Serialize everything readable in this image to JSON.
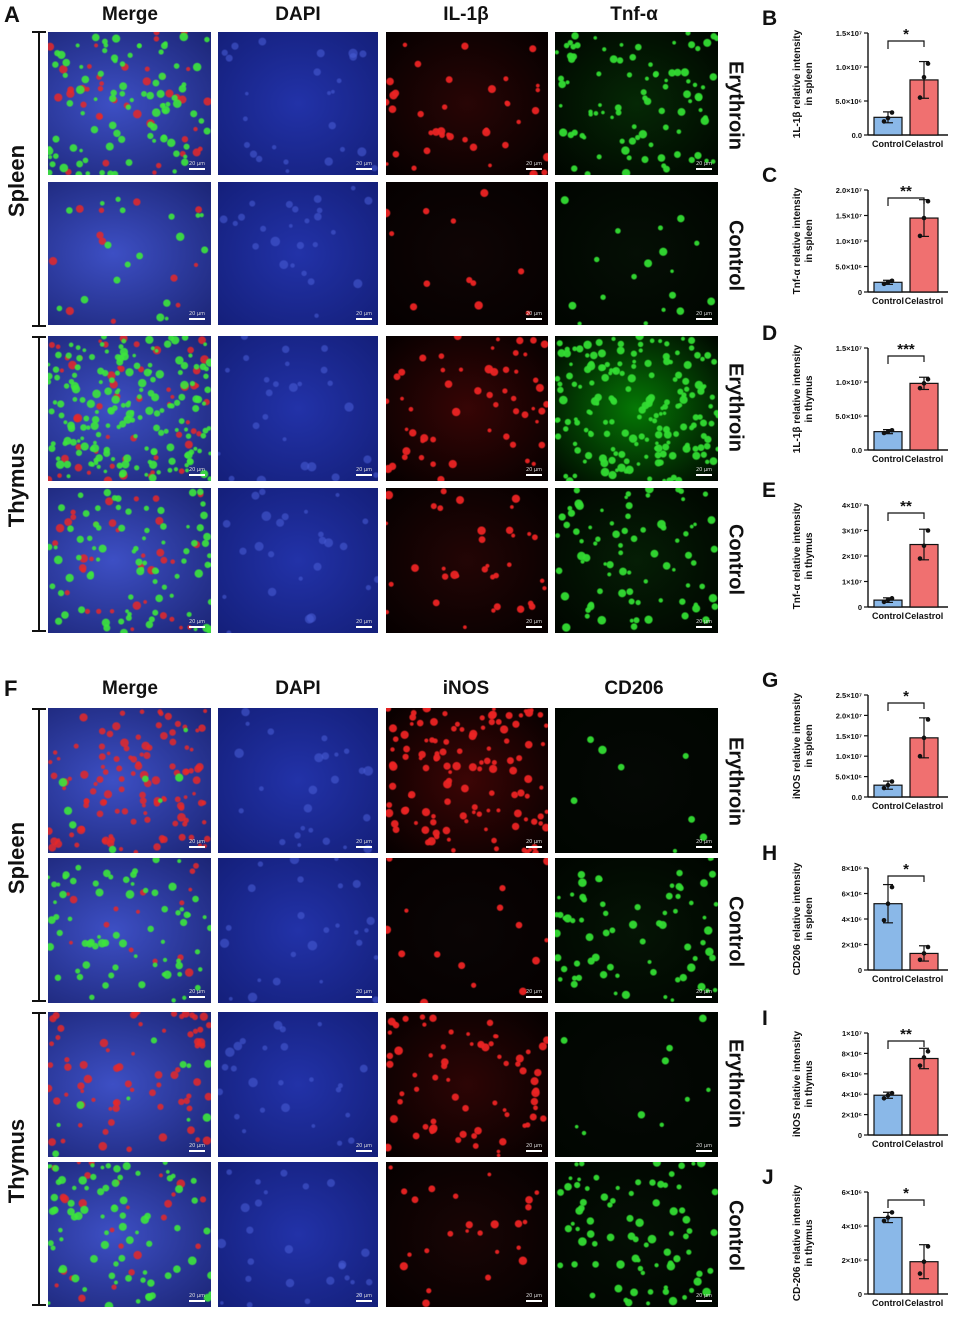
{
  "figure": {
    "panel_A": {
      "letter": "A",
      "columns": [
        "Merge",
        "DAPI",
        "IL-1β",
        "Tnf-α"
      ],
      "tissues": [
        "Spleen",
        "Thymus"
      ],
      "rows": [
        "Erythroin",
        "Control",
        "Erythroin",
        "Control"
      ]
    },
    "panel_F": {
      "letter": "F",
      "columns": [
        "Merge",
        "DAPI",
        "iNOS",
        "CD206"
      ],
      "tissues": [
        "Spleen",
        "Thymus"
      ],
      "rows": [
        "Erythroin",
        "Control",
        "Erythroin",
        "Control"
      ]
    },
    "scale_bar_label": "20 μm",
    "colors": {
      "dapi": "#1b2ea0",
      "red": "#d81818",
      "green": "#22c422",
      "control_bar": "#8ab8e8",
      "celastrol_bar": "#f07070"
    }
  },
  "chart_data": [
    {
      "letter": "B",
      "type": "bar",
      "ylabel": "1L-1β relative intensity in spleen",
      "categories": [
        "Control",
        "Celastrol"
      ],
      "values": [
        2600000.0,
        8100000.0
      ],
      "errors": [
        800000.0,
        2700000.0
      ],
      "points": [
        [
          2000000.0,
          2500000.0,
          3300000.0
        ],
        [
          5500000.0,
          8500000.0,
          10500000.0
        ]
      ],
      "ylim": [
        0,
        15000000.0
      ],
      "ticks": [
        0,
        5000000.0,
        10000000.0,
        15000000.0
      ],
      "tick_labels": [
        "0.0",
        "5.0×10⁶",
        "1.0×10⁷",
        "1.5×10⁷"
      ],
      "significance": "*"
    },
    {
      "letter": "C",
      "type": "bar",
      "ylabel": "Tnf-α relative intensity in spleen",
      "categories": [
        "Control",
        "Celastrol"
      ],
      "values": [
        1900000.0,
        14500000.0
      ],
      "errors": [
        400000.0,
        3600000.0
      ],
      "points": [
        [
          1600000.0,
          1900000.0,
          2200000.0
        ],
        [
          11000000.0,
          14500000.0,
          17800000.0
        ]
      ],
      "ylim": [
        0,
        20000000.0
      ],
      "ticks": [
        0,
        5000000.0,
        10000000.0,
        15000000.0,
        20000000.0
      ],
      "tick_labels": [
        "0",
        "5.0×10⁶",
        "1.0×10⁷",
        "1.5×10⁷",
        "2.0×10⁷"
      ],
      "significance": "**"
    },
    {
      "letter": "D",
      "type": "bar",
      "ylabel": "1L-1β relative intensity in thymus",
      "categories": [
        "Control",
        "Celastrol"
      ],
      "values": [
        2700000.0,
        9800000.0
      ],
      "errors": [
        300000.0,
        900000.0
      ],
      "points": [
        [
          2500000.0,
          2700000.0,
          2900000.0
        ],
        [
          9100000.0,
          9800000.0,
          10400000.0
        ]
      ],
      "ylim": [
        0,
        15000000.0
      ],
      "ticks": [
        0,
        5000000.0,
        10000000.0,
        15000000.0
      ],
      "tick_labels": [
        "0.0",
        "5.0×10⁶",
        "1.0×10⁷",
        "1.5×10⁷"
      ],
      "significance": "***"
    },
    {
      "letter": "E",
      "type": "bar",
      "ylabel": "Tnf-α relative intensity in thymus",
      "categories": [
        "Control",
        "Celastrol"
      ],
      "values": [
        2700000.0,
        24500000.0
      ],
      "errors": [
        900000.0,
        6000000.0
      ],
      "points": [
        [
          2000000.0,
          2800000.0,
          3400000.0
        ],
        [
          19000000.0,
          24000000.0,
          30000000.0
        ]
      ],
      "ylim": [
        0,
        40000000.0
      ],
      "ticks": [
        0,
        10000000.0,
        20000000.0,
        30000000.0,
        40000000.0
      ],
      "tick_labels": [
        "0",
        "1×10⁷",
        "2×10⁷",
        "3×10⁷",
        "4×10⁷"
      ],
      "significance": "**"
    },
    {
      "letter": "G",
      "type": "bar",
      "ylabel": "iNOS relative intensity in spleen",
      "categories": [
        "Control",
        "Celastrol"
      ],
      "values": [
        2900000.0,
        14500000.0
      ],
      "errors": [
        1000000.0,
        4900000.0
      ],
      "points": [
        [
          2200000.0,
          2900000.0,
          3800000.0
        ],
        [
          10000000.0,
          14500000.0,
          19000000.0
        ]
      ],
      "ylim": [
        0,
        25000000.0
      ],
      "ticks": [
        0,
        5000000.0,
        10000000.0,
        15000000.0,
        20000000.0,
        25000000.0
      ],
      "tick_labels": [
        "0.0",
        "5.0×10⁶",
        "1.0×10⁷",
        "1.5×10⁷",
        "2.0×10⁷",
        "2.5×10⁷"
      ],
      "significance": "*"
    },
    {
      "letter": "H",
      "type": "bar",
      "ylabel": "CD206 relative intensity in spleen",
      "categories": [
        "Control",
        "Celastrol"
      ],
      "values": [
        5200000.0,
        1300000.0
      ],
      "errors": [
        1500000.0,
        600000.0
      ],
      "points": [
        [
          3900000.0,
          5200000.0,
          6500000.0
        ],
        [
          800000.0,
          1300000.0,
          1800000.0
        ]
      ],
      "ylim": [
        0,
        8000000.0
      ],
      "ticks": [
        0,
        2000000.0,
        4000000.0,
        6000000.0,
        8000000.0
      ],
      "tick_labels": [
        "0",
        "2×10⁶",
        "4×10⁶",
        "6×10⁶",
        "8×10⁶"
      ],
      "significance": "*"
    },
    {
      "letter": "I",
      "type": "bar",
      "ylabel": "iNOS relative intensity in thymus",
      "categories": [
        "Control",
        "Celastrol"
      ],
      "values": [
        3900000.0,
        7500000.0
      ],
      "errors": [
        300000.0,
        1000000.0
      ],
      "points": [
        [
          3600000.0,
          3900000.0,
          4100000.0
        ],
        [
          6800000.0,
          7600000.0,
          8200000.0
        ]
      ],
      "ylim": [
        0,
        10000000.0
      ],
      "ticks": [
        0,
        2000000.0,
        4000000.0,
        6000000.0,
        8000000.0,
        10000000.0
      ],
      "tick_labels": [
        "0",
        "2×10⁶",
        "4×10⁶",
        "6×10⁶",
        "8×10⁶",
        "1×10⁷"
      ],
      "significance": "**"
    },
    {
      "letter": "J",
      "type": "bar",
      "ylabel": "CD-206 relative intensity in thymus",
      "categories": [
        "Control",
        "Celastrol"
      ],
      "values": [
        4500000.0,
        1900000.0
      ],
      "errors": [
        300000.0,
        1000000.0
      ],
      "points": [
        [
          4300000.0,
          4500000.0,
          4800000.0
        ],
        [
          1200000.0,
          1900000.0,
          2800000.0
        ]
      ],
      "ylim": [
        0,
        6000000.0
      ],
      "ticks": [
        0,
        2000000.0,
        4000000.0,
        6000000.0
      ],
      "tick_labels": [
        "0",
        "2×10⁶",
        "4×10⁶",
        "6×10⁶"
      ],
      "significance": "*"
    }
  ]
}
